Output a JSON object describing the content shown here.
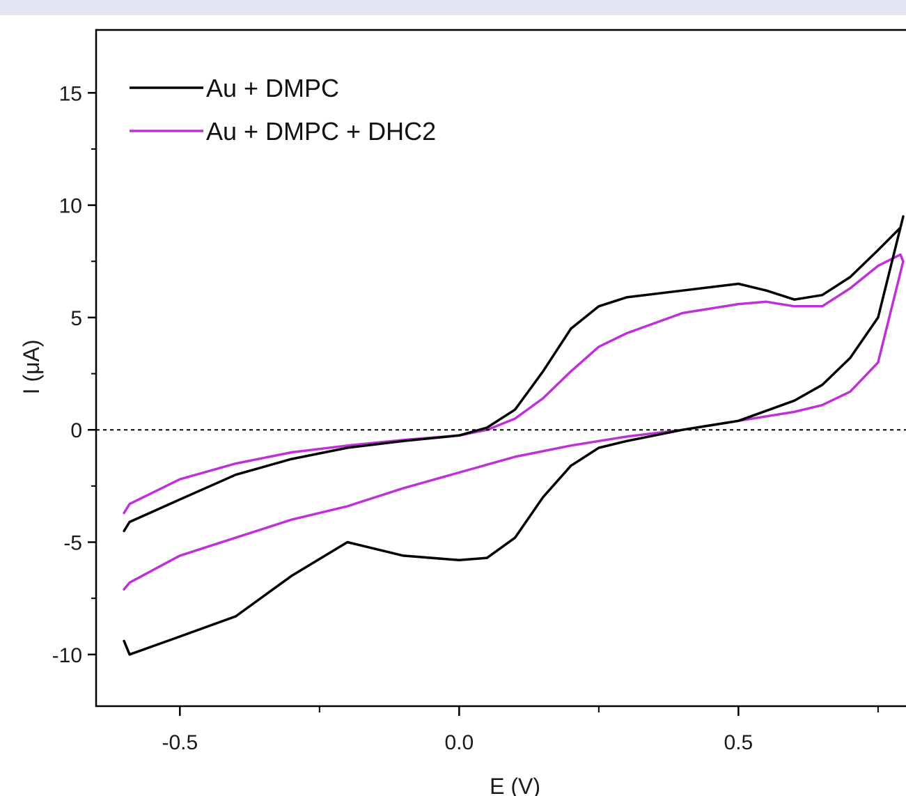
{
  "chart_data": {
    "type": "line",
    "xlabel": "E (V)",
    "ylabel": "I (μA)",
    "xlim": [
      -0.65,
      0.8
    ],
    "ylim": [
      -12.3,
      17.8
    ],
    "x_ticks": [
      -0.5,
      0.0,
      0.5
    ],
    "x_tick_labels": [
      "-0.5",
      "0.0",
      "0.5"
    ],
    "y_ticks": [
      -10,
      -5,
      0,
      5,
      10,
      15
    ],
    "y_tick_labels": [
      "-10",
      "-5",
      "0",
      "5",
      "10",
      "15"
    ],
    "grid": false,
    "legend_position": "top-left",
    "zero_line": {
      "y": 0,
      "style": "dotted"
    },
    "series": [
      {
        "name": "Au + DMPC",
        "color": "#000000",
        "x": [
          -0.6,
          -0.59,
          -0.5,
          -0.4,
          -0.3,
          -0.2,
          -0.1,
          0.0,
          0.05,
          0.1,
          0.15,
          0.2,
          0.25,
          0.3,
          0.4,
          0.5,
          0.55,
          0.6,
          0.65,
          0.7,
          0.75,
          0.79,
          0.795,
          0.75,
          0.7,
          0.65,
          0.6,
          0.5,
          0.4,
          0.3,
          0.25,
          0.2,
          0.15,
          0.1,
          0.05,
          0.0,
          -0.1,
          -0.2,
          -0.3,
          -0.4,
          -0.5,
          -0.59,
          -0.6
        ],
        "y": [
          -4.5,
          -4.1,
          -3.1,
          -2.0,
          -1.3,
          -0.8,
          -0.5,
          -0.25,
          0.1,
          0.9,
          2.6,
          4.5,
          5.5,
          5.9,
          6.2,
          6.5,
          6.2,
          5.8,
          6.0,
          6.8,
          8.0,
          9.0,
          9.5,
          5.0,
          3.2,
          2.0,
          1.3,
          0.4,
          0.0,
          -0.5,
          -0.8,
          -1.6,
          -3.0,
          -4.8,
          -5.7,
          -5.8,
          -5.6,
          -5.0,
          -6.5,
          -8.3,
          -9.2,
          -10.0,
          -9.4
        ]
      },
      {
        "name": "Au + DMPC + DHC2",
        "color": "#c030d8",
        "x": [
          -0.6,
          -0.59,
          -0.5,
          -0.4,
          -0.3,
          -0.2,
          -0.1,
          0.0,
          0.05,
          0.1,
          0.15,
          0.2,
          0.25,
          0.3,
          0.4,
          0.5,
          0.55,
          0.6,
          0.65,
          0.7,
          0.75,
          0.79,
          0.795,
          0.75,
          0.7,
          0.65,
          0.6,
          0.5,
          0.4,
          0.3,
          0.25,
          0.2,
          0.1,
          0.0,
          -0.1,
          -0.2,
          -0.3,
          -0.4,
          -0.5,
          -0.59,
          -0.6
        ],
        "y": [
          -3.7,
          -3.3,
          -2.2,
          -1.5,
          -1.0,
          -0.7,
          -0.45,
          -0.25,
          0.0,
          0.5,
          1.4,
          2.6,
          3.7,
          4.3,
          5.2,
          5.6,
          5.7,
          5.5,
          5.5,
          6.3,
          7.3,
          7.8,
          7.5,
          3.0,
          1.7,
          1.1,
          0.8,
          0.4,
          0.0,
          -0.3,
          -0.5,
          -0.7,
          -1.2,
          -1.9,
          -2.6,
          -3.4,
          -4.0,
          -4.8,
          -5.6,
          -6.8,
          -7.1
        ]
      }
    ]
  }
}
